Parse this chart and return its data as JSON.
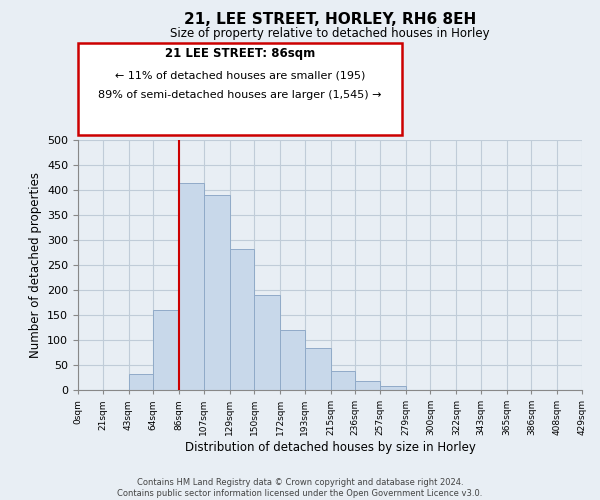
{
  "title": "21, LEE STREET, HORLEY, RH6 8EH",
  "subtitle": "Size of property relative to detached houses in Horley",
  "xlabel": "Distribution of detached houses by size in Horley",
  "ylabel": "Number of detached properties",
  "bar_edges": [
    0,
    21,
    43,
    64,
    86,
    107,
    129,
    150,
    172,
    193,
    215,
    236,
    257,
    279,
    300,
    322,
    343,
    365,
    386,
    408,
    429
  ],
  "bar_heights": [
    0,
    0,
    32,
    160,
    415,
    390,
    283,
    190,
    120,
    85,
    38,
    18,
    9,
    0,
    0,
    0,
    0,
    0,
    0,
    0
  ],
  "bar_color": "#c8d8ea",
  "bar_edge_color": "#90aac8",
  "marker_x": 86,
  "marker_color": "#cc0000",
  "annotation_box_color": "#cc0000",
  "annotation_text_line1": "21 LEE STREET: 86sqm",
  "annotation_text_line2": "← 11% of detached houses are smaller (195)",
  "annotation_text_line3": "89% of semi-detached houses are larger (1,545) →",
  "ylim": [
    0,
    500
  ],
  "xlim": [
    0,
    429
  ],
  "tick_labels": [
    "0sqm",
    "21sqm",
    "43sqm",
    "64sqm",
    "86sqm",
    "107sqm",
    "129sqm",
    "150sqm",
    "172sqm",
    "193sqm",
    "215sqm",
    "236sqm",
    "257sqm",
    "279sqm",
    "300sqm",
    "322sqm",
    "343sqm",
    "365sqm",
    "386sqm",
    "408sqm",
    "429sqm"
  ],
  "tick_positions": [
    0,
    21,
    43,
    64,
    86,
    107,
    129,
    150,
    172,
    193,
    215,
    236,
    257,
    279,
    300,
    322,
    343,
    365,
    386,
    408,
    429
  ],
  "ytick_positions": [
    0,
    50,
    100,
    150,
    200,
    250,
    300,
    350,
    400,
    450,
    500
  ],
  "footer_line1": "Contains HM Land Registry data © Crown copyright and database right 2024.",
  "footer_line2": "Contains public sector information licensed under the Open Government Licence v3.0.",
  "bg_color": "#e8eef4",
  "plot_bg_color": "#e8eef4",
  "grid_color": "#c0ccd8"
}
